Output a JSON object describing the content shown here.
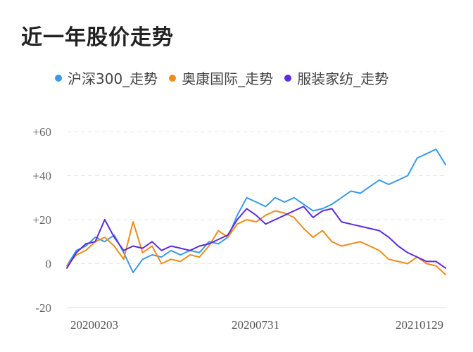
{
  "title": "近一年股价走势",
  "legend": [
    {
      "name": "沪深300_走势",
      "color": "#3a9ae8"
    },
    {
      "name": "奥康国际_走势",
      "color": "#f08c1a"
    },
    {
      "name": "服装家纺_走势",
      "color": "#5b2be0"
    }
  ],
  "chart_data": {
    "type": "line",
    "ylim": [
      -20,
      60
    ],
    "yticks": [
      "+60",
      "+40",
      "+20",
      "0",
      "-20"
    ],
    "xticks": [
      "20200203",
      "20200731",
      "20210129"
    ],
    "grid": true,
    "legend_position": "top",
    "x": [
      0,
      6,
      12,
      18,
      24,
      30,
      36,
      42,
      48,
      54,
      60,
      66,
      72,
      78,
      84,
      90,
      96,
      102,
      108,
      114,
      120,
      126,
      132,
      138,
      144,
      150,
      156,
      162,
      168,
      174,
      180,
      186,
      192,
      198,
      204,
      210,
      216,
      222,
      228,
      234,
      240
    ],
    "series": [
      {
        "name": "沪深300_走势",
        "color": "#3a9ae8",
        "values": [
          -1,
          6,
          8,
          12,
          10,
          13,
          5,
          -4,
          2,
          4,
          3,
          6,
          4,
          6,
          5,
          10,
          9,
          12,
          22,
          30,
          28,
          26,
          30,
          28,
          30,
          27,
          24,
          25,
          27,
          30,
          33,
          32,
          35,
          38,
          36,
          38,
          40,
          48,
          50,
          52,
          45
        ]
      },
      {
        "name": "奥康国际_走势",
        "color": "#f08c1a",
        "values": [
          -1,
          4,
          6,
          10,
          12,
          8,
          2,
          19,
          5,
          8,
          0,
          2,
          1,
          4,
          3,
          8,
          15,
          12,
          18,
          20,
          19,
          22,
          24,
          23,
          21,
          16,
          12,
          15,
          10,
          8,
          9,
          10,
          8,
          6,
          2,
          1,
          0,
          3,
          0,
          -1,
          -5
        ]
      },
      {
        "name": "服装家纺_走势",
        "color": "#5b2be0",
        "values": [
          -2,
          5,
          9,
          10,
          20,
          12,
          6,
          8,
          7,
          10,
          6,
          8,
          7,
          6,
          8,
          9,
          11,
          13,
          20,
          25,
          22,
          18,
          20,
          22,
          24,
          26,
          21,
          24,
          25,
          19,
          18,
          17,
          16,
          15,
          12,
          8,
          5,
          3,
          1,
          1,
          -2
        ]
      }
    ]
  }
}
